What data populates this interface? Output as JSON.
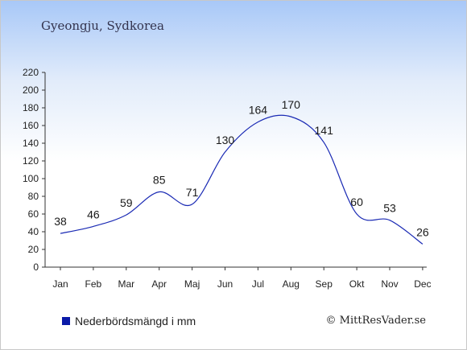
{
  "chart_data": {
    "type": "line",
    "subtitle": "Gyeongju, Sydkorea",
    "categories": [
      "Jan",
      "Feb",
      "Mar",
      "Apr",
      "Maj",
      "Jun",
      "Jul",
      "Aug",
      "Sep",
      "Okt",
      "Nov",
      "Dec"
    ],
    "series": [
      {
        "name": "Nederbördsmängd i mm",
        "values": [
          38,
          46,
          59,
          85,
          71,
          130,
          164,
          170,
          141,
          60,
          53,
          26
        ],
        "color": "#1a2ab4"
      }
    ],
    "yticks": [
      0,
      20,
      40,
      60,
      80,
      100,
      120,
      140,
      160,
      180,
      200,
      220
    ],
    "ylim": [
      0,
      220
    ],
    "grid": false,
    "legend_position": "bottom-left"
  },
  "credit": "© MittResVader.se"
}
